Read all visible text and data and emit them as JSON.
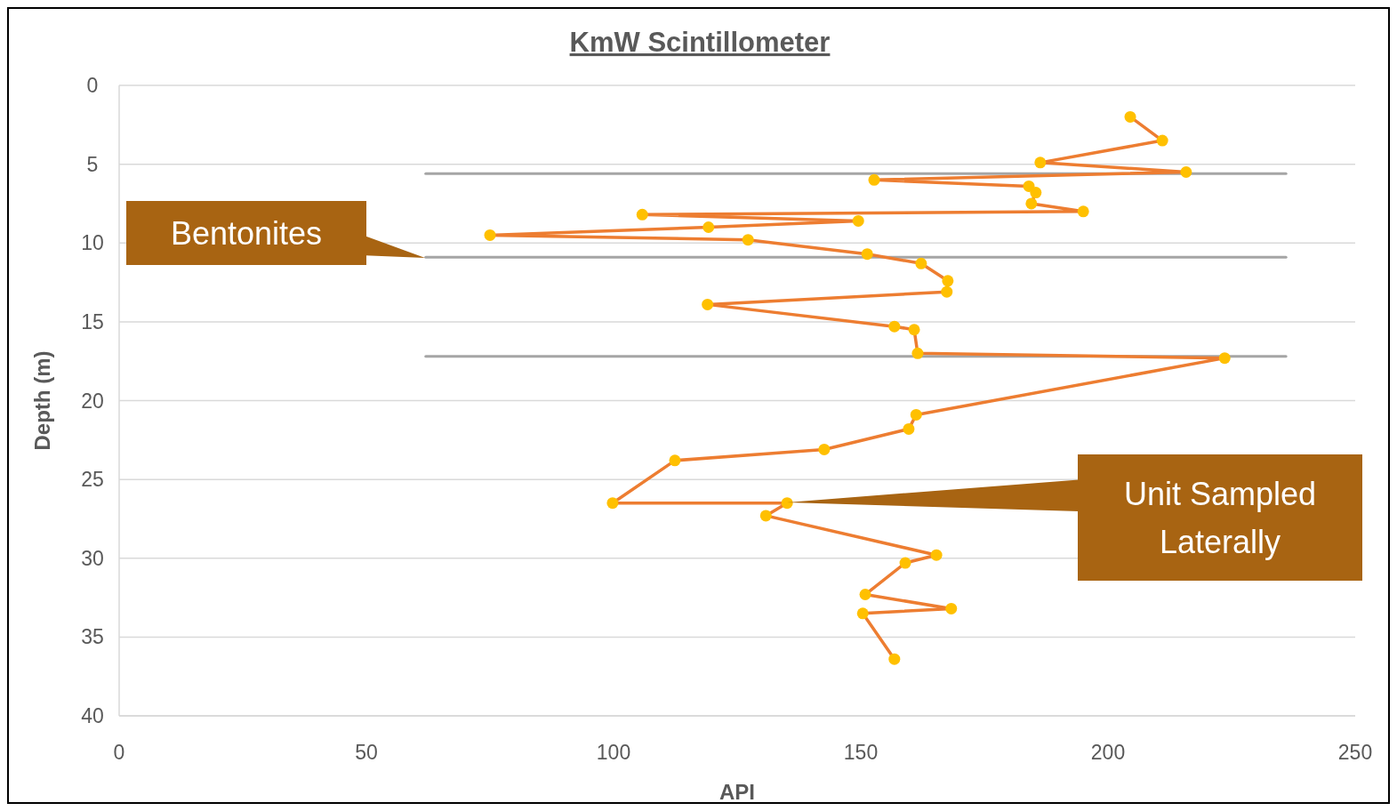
{
  "chart_data": {
    "type": "line",
    "title": "KmW Scintillometer",
    "xlabel": "API",
    "ylabel": "Depth (m)",
    "xlim": [
      0,
      250
    ],
    "xticks": [
      0,
      50,
      100,
      150,
      200,
      250
    ],
    "ylim": [
      40,
      0
    ],
    "yticks": [
      0,
      5,
      10,
      15,
      20,
      25,
      30,
      35,
      40
    ],
    "grid": "y",
    "marker": "circle",
    "line_style": "solid",
    "series": [
      {
        "color": "#ed7d31",
        "colors": [
          "#ffc000",
          "#ffc000",
          "#ffc000",
          "#ffc000",
          "#ffc000",
          "#ffc000",
          "#ffc000",
          "#ffc000",
          "#ffc000",
          "#ffc000",
          "#ffc000",
          "#ffc000",
          "#ffc000",
          "#ffc000",
          "#ffc000",
          "#ffc000",
          "#ffc000",
          "#ffc000",
          "#ffc000",
          "#ffc000",
          "#ffc000",
          "#ffc000",
          "#ffc000",
          "#ffc000",
          "#ffc000",
          "#ffc000",
          "#ffc000",
          "#ffc000",
          "#ffc000",
          "#ffc000",
          "#ffc000",
          "#ffc000",
          "#ffc000",
          "#ffc000",
          "#ffc000",
          "#ffc000"
        ],
        "x": [
          204.5,
          211,
          186.3,
          215.8,
          152.7,
          184,
          185.4,
          184.5,
          195,
          105.8,
          149.5,
          119.2,
          75,
          127.2,
          151.3,
          162.2,
          167.6,
          167.4,
          119,
          156.8,
          160.8,
          161.5,
          223.6,
          161.2,
          159.7,
          142.6,
          112.4,
          99.8,
          135.1,
          130.8,
          165.3,
          159,
          150.9,
          168.3,
          150.4,
          156.8
        ],
        "values": [
          2.0,
          3.5,
          4.9,
          5.5,
          6.0,
          6.4,
          6.8,
          7.5,
          8.0,
          8.2,
          8.6,
          9.0,
          9.5,
          9.8,
          10.7,
          11.3,
          12.4,
          13.1,
          13.9,
          15.3,
          15.5,
          17.0,
          17.3,
          20.9,
          21.8,
          23.1,
          23.8,
          26.5,
          26.5,
          27.3,
          29.8,
          30.3,
          32.3,
          33.2,
          33.5,
          36.4
        ]
      },
      {
        "type": "line",
        "color": "#a5a5a5",
        "marker": "none",
        "x": [
          62,
          236
        ],
        "values": [
          5.6,
          5.6
        ]
      },
      {
        "type": "line",
        "color": "#a5a5a5",
        "marker": "none",
        "x": [
          62,
          236
        ],
        "values": [
          10.9,
          10.9
        ]
      },
      {
        "type": "line",
        "color": "#a5a5a5",
        "marker": "none",
        "x": [
          62,
          236
        ],
        "values": [
          17.2,
          17.2
        ]
      }
    ],
    "annotations": [
      "Bentonites",
      "Unit Sampled Laterally"
    ]
  }
}
